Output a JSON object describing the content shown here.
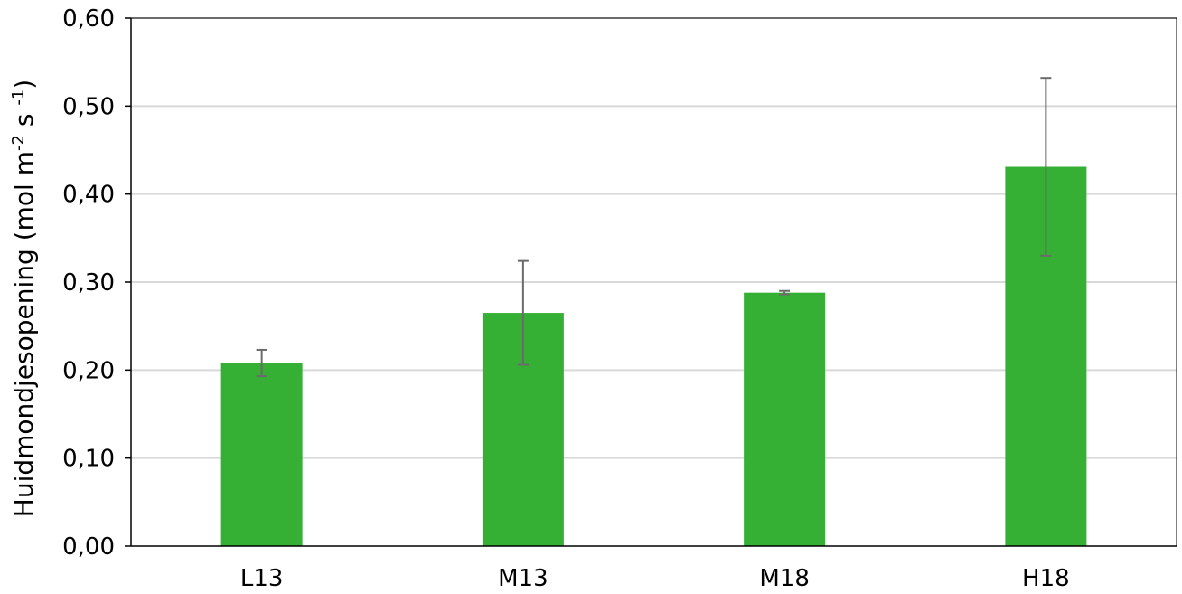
{
  "chart_data": {
    "type": "bar",
    "title": "",
    "xlabel": "",
    "ylabel": {
      "main": "Huidmondjesopening (mol m",
      "sup1": "-2",
      "mid": " s ",
      "sup2": "-1",
      "end": ")"
    },
    "categories": [
      "L13",
      "M13",
      "M18",
      "H18"
    ],
    "values": [
      0.208,
      0.265,
      0.288,
      0.431
    ],
    "error": [
      0.015,
      0.059,
      0.002,
      0.101
    ],
    "ylim": [
      0,
      0.6
    ],
    "yticks": [
      0,
      0.1,
      0.2,
      0.3,
      0.4,
      0.5,
      0.6
    ],
    "ytick_labels": [
      "0,00",
      "0,10",
      "0,20",
      "0,30",
      "0,40",
      "0,50",
      "0,60"
    ],
    "grid": true,
    "legend": "none",
    "colors": {
      "bar": "#35b035",
      "errorbar": "#6b6b6b",
      "grid": "#d9d9d9",
      "axis": "#000000"
    }
  }
}
